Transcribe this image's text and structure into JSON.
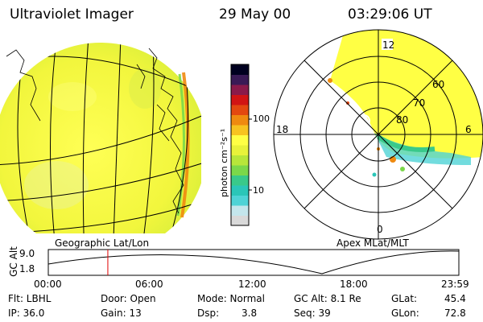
{
  "header": {
    "title": "Ultraviolet Imager",
    "date": "29 May 00",
    "time": "03:29:06 UT"
  },
  "colorbar": {
    "unit_label": "photon cm⁻²s⁻¹",
    "tick_labels": [
      "100",
      "10"
    ],
    "colors": [
      "#d9d9d9",
      "#c4e6ec",
      "#4fd3d6",
      "#2bc6b8",
      "#39c98a",
      "#7bd84a",
      "#b7e63a",
      "#e8f23a",
      "#ffff44",
      "#f7c320",
      "#ef8a10",
      "#e34810",
      "#d11414",
      "#8a1a4a",
      "#3a1a56",
      "#000020"
    ]
  },
  "left_panel": {
    "label": "Geographic Lat/Lon"
  },
  "right_panel": {
    "label": "Apex MLat/MLT",
    "mlt_labels": {
      "top": "12",
      "left": "18",
      "right": "6",
      "bottom": "0"
    },
    "lat_labels": [
      "60",
      "70",
      "80"
    ]
  },
  "timeline": {
    "ylabel": "GC Alt",
    "y_ticks": [
      "9.0",
      "1.8"
    ],
    "x_ticks": [
      "00:00",
      "06:00",
      "12:00",
      "18:00",
      "23:59"
    ],
    "current_time_fraction": 0.145,
    "marker_color": "#e00000"
  },
  "info": {
    "row1": [
      {
        "label": "Flt: LBHL"
      },
      {
        "label": "Door: Open"
      },
      {
        "label": "Mode: Normal"
      },
      {
        "label": "GC Alt: 8.1 Re"
      },
      {
        "label": "GLat:",
        "value": "45.4"
      }
    ],
    "row2": [
      {
        "label": "IP: 36.0"
      },
      {
        "label": "Gain: 13"
      },
      {
        "label": "Dsp:",
        "value": "3.8"
      },
      {
        "label": "Seq: 39"
      },
      {
        "label": "GLon:",
        "value": "72.8"
      }
    ]
  }
}
